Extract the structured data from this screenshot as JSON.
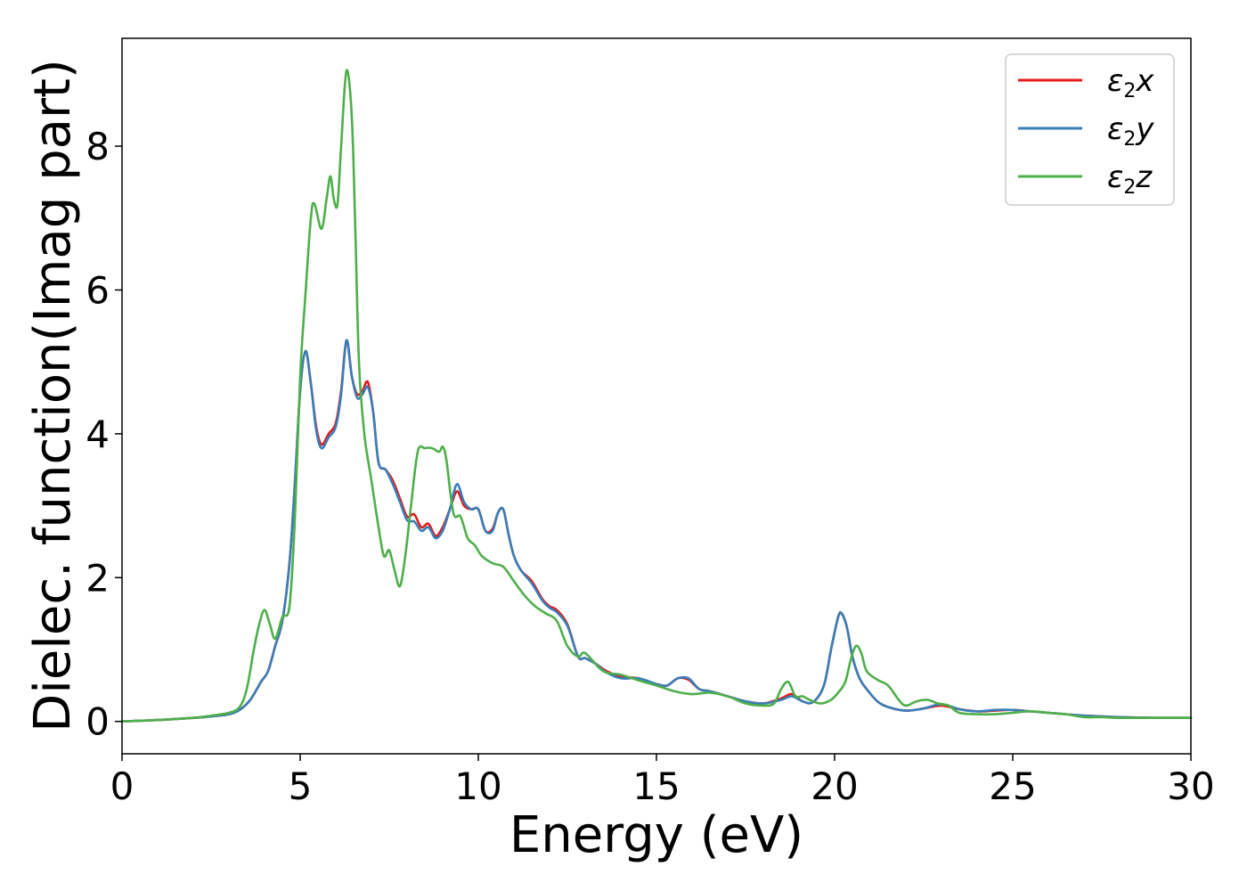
{
  "chart_data": {
    "type": "line",
    "title": "",
    "xlabel": "Energy (eV)",
    "ylabel": "Dielec. function(Imag part)",
    "xlim": [
      0,
      30
    ],
    "ylim": [
      -0.45,
      9.5
    ],
    "xticks": [
      0,
      5,
      10,
      15,
      20,
      25,
      30
    ],
    "xtick_labels": [
      "0",
      "5",
      "10",
      "15",
      "20",
      "25",
      "30"
    ],
    "yticks": [
      0,
      2,
      4,
      6,
      8
    ],
    "ytick_labels": [
      "0",
      "2",
      "4",
      "6",
      "8"
    ],
    "grid": false,
    "legend_position": "top-right",
    "series": [
      {
        "name": "ε2x",
        "legend_base": "ε",
        "legend_sub": "2",
        "legend_var": "x",
        "color": "#e41a1c",
        "x": [
          0,
          1,
          2,
          2.5,
          3,
          3.3,
          3.6,
          3.9,
          4.1,
          4.3,
          4.5,
          4.7,
          4.85,
          5.0,
          5.15,
          5.3,
          5.45,
          5.6,
          5.8,
          6.0,
          6.15,
          6.3,
          6.45,
          6.6,
          6.75,
          6.9,
          7.05,
          7.2,
          7.4,
          7.6,
          7.8,
          8.0,
          8.2,
          8.4,
          8.6,
          8.8,
          9.0,
          9.2,
          9.4,
          9.6,
          9.8,
          10.0,
          10.2,
          10.4,
          10.55,
          10.7,
          10.85,
          11.0,
          11.2,
          11.5,
          11.8,
          12.0,
          12.2,
          12.5,
          12.8,
          13.0,
          13.3,
          13.6,
          14.0,
          14.5,
          15.0,
          15.3,
          15.6,
          15.9,
          16.2,
          16.5,
          17.0,
          17.5,
          18.0,
          18.5,
          18.8,
          19.1,
          19.4,
          19.7,
          19.9,
          20.1,
          20.2,
          20.35,
          20.5,
          20.7,
          20.9,
          21.2,
          21.5,
          22.0,
          22.5,
          23.0,
          23.5,
          24.0,
          24.5,
          25.0,
          25.5,
          26.0,
          26.5,
          27.0,
          27.5,
          28.0,
          29.0,
          30.0
        ],
        "y": [
          0.0,
          0.02,
          0.05,
          0.07,
          0.1,
          0.16,
          0.3,
          0.55,
          0.7,
          1.05,
          1.4,
          2.2,
          3.3,
          4.6,
          5.15,
          4.7,
          4.1,
          3.85,
          4.0,
          4.15,
          4.6,
          5.3,
          4.8,
          4.55,
          4.6,
          4.72,
          4.3,
          3.6,
          3.5,
          3.35,
          3.1,
          2.85,
          2.88,
          2.7,
          2.75,
          2.58,
          2.7,
          2.95,
          3.2,
          3.0,
          2.95,
          2.95,
          2.65,
          2.68,
          2.9,
          2.95,
          2.6,
          2.3,
          2.1,
          1.95,
          1.7,
          1.6,
          1.55,
          1.35,
          0.9,
          0.88,
          0.8,
          0.7,
          0.62,
          0.6,
          0.52,
          0.5,
          0.6,
          0.58,
          0.45,
          0.42,
          0.35,
          0.28,
          0.25,
          0.32,
          0.38,
          0.28,
          0.27,
          0.5,
          1.0,
          1.45,
          1.5,
          1.3,
          0.9,
          0.6,
          0.45,
          0.28,
          0.2,
          0.15,
          0.18,
          0.22,
          0.17,
          0.14,
          0.15,
          0.16,
          0.14,
          0.12,
          0.1,
          0.08,
          0.07,
          0.06,
          0.05,
          0.05
        ]
      },
      {
        "name": "ε2y",
        "legend_base": "ε",
        "legend_sub": "2",
        "legend_var": "y",
        "color": "#377eb8",
        "x": [
          0,
          1,
          2,
          2.5,
          3,
          3.3,
          3.6,
          3.9,
          4.1,
          4.3,
          4.5,
          4.7,
          4.85,
          5.0,
          5.15,
          5.3,
          5.45,
          5.6,
          5.8,
          6.0,
          6.15,
          6.3,
          6.45,
          6.6,
          6.75,
          6.9,
          7.05,
          7.2,
          7.4,
          7.6,
          7.8,
          8.0,
          8.2,
          8.4,
          8.6,
          8.8,
          9.0,
          9.2,
          9.4,
          9.6,
          9.8,
          10.0,
          10.2,
          10.4,
          10.55,
          10.7,
          10.85,
          11.0,
          11.2,
          11.5,
          11.8,
          12.0,
          12.2,
          12.5,
          12.8,
          13.0,
          13.3,
          13.6,
          14.0,
          14.5,
          15.0,
          15.3,
          15.6,
          15.9,
          16.2,
          16.5,
          17.0,
          17.5,
          18.0,
          18.5,
          18.8,
          19.1,
          19.4,
          19.7,
          19.9,
          20.1,
          20.2,
          20.35,
          20.5,
          20.7,
          20.9,
          21.2,
          21.5,
          22.0,
          22.5,
          23.0,
          23.5,
          24.0,
          24.5,
          25.0,
          25.5,
          26.0,
          26.5,
          27.0,
          27.5,
          28.0,
          29.0,
          30.0
        ],
        "y": [
          0.0,
          0.02,
          0.05,
          0.07,
          0.1,
          0.16,
          0.3,
          0.55,
          0.7,
          1.05,
          1.4,
          2.2,
          3.3,
          4.6,
          5.15,
          4.7,
          4.05,
          3.8,
          3.95,
          4.1,
          4.55,
          5.3,
          4.8,
          4.5,
          4.55,
          4.65,
          4.3,
          3.6,
          3.5,
          3.3,
          3.05,
          2.8,
          2.78,
          2.65,
          2.7,
          2.55,
          2.65,
          2.95,
          3.3,
          3.05,
          2.95,
          2.95,
          2.65,
          2.65,
          2.9,
          2.95,
          2.6,
          2.3,
          2.1,
          1.92,
          1.68,
          1.58,
          1.52,
          1.33,
          0.9,
          0.88,
          0.8,
          0.68,
          0.6,
          0.6,
          0.52,
          0.5,
          0.6,
          0.6,
          0.45,
          0.42,
          0.35,
          0.28,
          0.25,
          0.3,
          0.35,
          0.28,
          0.27,
          0.5,
          1.0,
          1.45,
          1.5,
          1.3,
          0.9,
          0.6,
          0.45,
          0.28,
          0.2,
          0.15,
          0.18,
          0.24,
          0.17,
          0.14,
          0.16,
          0.16,
          0.14,
          0.12,
          0.1,
          0.08,
          0.07,
          0.06,
          0.05,
          0.05
        ]
      },
      {
        "name": "ε2z",
        "legend_base": "ε",
        "legend_sub": "2",
        "legend_var": "z",
        "color": "#4daf4a",
        "x": [
          0,
          1,
          2,
          2.5,
          3,
          3.3,
          3.5,
          3.7,
          3.85,
          4.0,
          4.15,
          4.3,
          4.5,
          4.7,
          4.85,
          5.0,
          5.15,
          5.3,
          5.4,
          5.6,
          5.75,
          5.85,
          5.95,
          6.05,
          6.15,
          6.3,
          6.45,
          6.55,
          6.65,
          6.8,
          7.0,
          7.2,
          7.35,
          7.5,
          7.65,
          7.8,
          7.95,
          8.1,
          8.3,
          8.5,
          8.7,
          8.9,
          9.0,
          9.1,
          9.3,
          9.5,
          9.7,
          9.9,
          10.1,
          10.4,
          10.7,
          11.0,
          11.3,
          11.6,
          11.9,
          12.2,
          12.5,
          12.8,
          13.0,
          13.5,
          14.0,
          14.5,
          15.0,
          15.5,
          16.0,
          16.5,
          17.0,
          17.5,
          18.0,
          18.3,
          18.5,
          18.7,
          18.9,
          19.1,
          19.3,
          19.6,
          19.9,
          20.1,
          20.3,
          20.45,
          20.6,
          20.75,
          20.9,
          21.2,
          21.5,
          21.8,
          22.0,
          22.3,
          22.6,
          22.9,
          23.2,
          23.5,
          24.0,
          24.5,
          25.0,
          25.5,
          26.0,
          26.5,
          27.0,
          27.5,
          28.0,
          29.0,
          30.0
        ],
        "y": [
          0.0,
          0.02,
          0.05,
          0.08,
          0.12,
          0.2,
          0.45,
          1.0,
          1.35,
          1.55,
          1.35,
          1.15,
          1.45,
          1.6,
          2.8,
          4.8,
          5.95,
          7.0,
          7.2,
          6.85,
          7.3,
          7.58,
          7.25,
          7.2,
          8.0,
          9.05,
          8.4,
          6.8,
          5.0,
          4.0,
          3.35,
          2.7,
          2.3,
          2.38,
          2.1,
          1.88,
          2.3,
          2.95,
          3.75,
          3.8,
          3.8,
          3.75,
          3.82,
          3.65,
          2.9,
          2.85,
          2.55,
          2.45,
          2.3,
          2.2,
          2.15,
          1.95,
          1.75,
          1.6,
          1.5,
          1.4,
          1.05,
          0.9,
          0.95,
          0.7,
          0.65,
          0.57,
          0.5,
          0.42,
          0.38,
          0.4,
          0.35,
          0.25,
          0.22,
          0.25,
          0.45,
          0.55,
          0.35,
          0.35,
          0.3,
          0.25,
          0.3,
          0.4,
          0.55,
          0.85,
          1.05,
          0.95,
          0.7,
          0.58,
          0.5,
          0.3,
          0.22,
          0.28,
          0.3,
          0.25,
          0.22,
          0.12,
          0.1,
          0.1,
          0.12,
          0.14,
          0.12,
          0.1,
          0.06,
          0.06,
          0.05,
          0.05,
          0.05
        ]
      }
    ]
  }
}
